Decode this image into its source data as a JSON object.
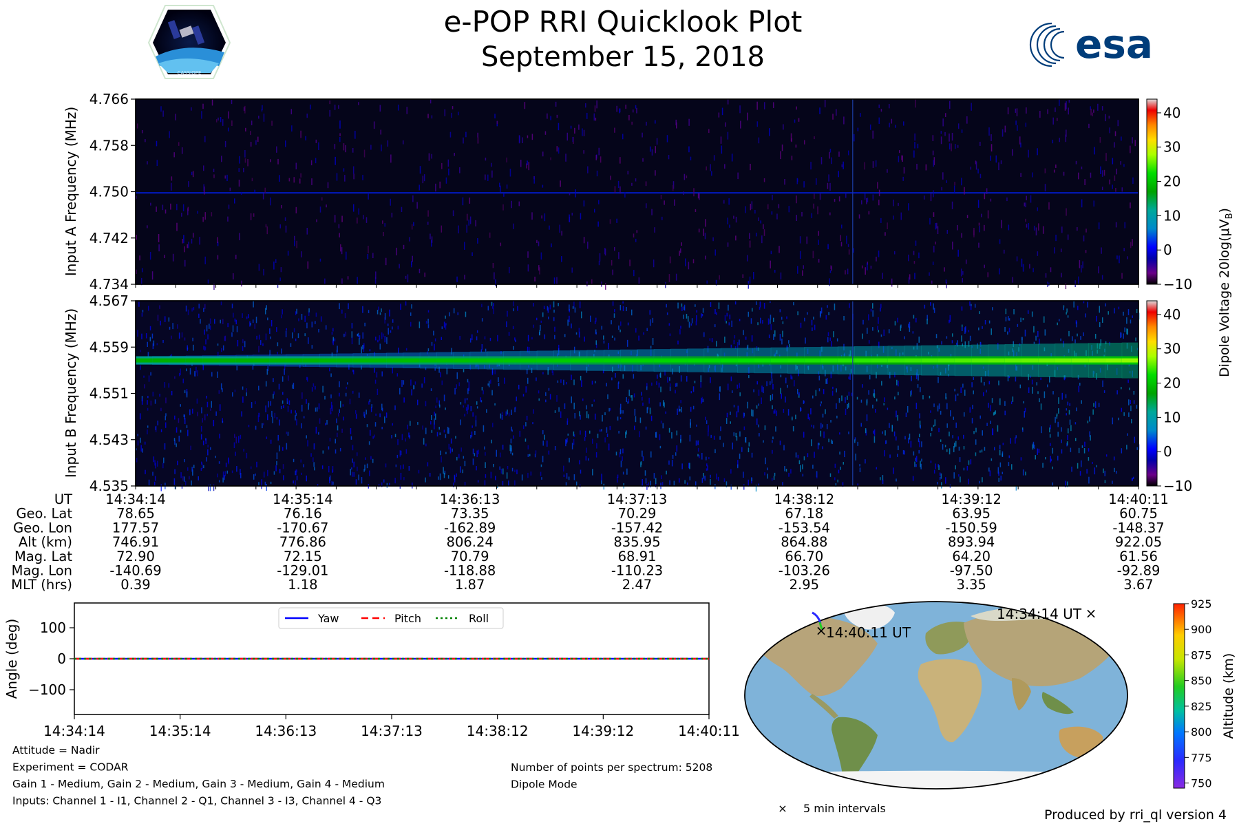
{
  "title": "e-POP RRI Quicklook Plot",
  "date": "September 15, 2018",
  "logos": {
    "left": "CASSIOPE",
    "right": "esa"
  },
  "colorbar": {
    "label": "Dipole Voltage 20log(μV",
    "label_sub": "B",
    "label_end": ")",
    "ticks": [
      "40",
      "30",
      "20",
      "10",
      "0",
      "−10"
    ],
    "range": [
      -10,
      44
    ]
  },
  "chart_data": [
    {
      "type": "heatmap",
      "name": "Input A spectrogram",
      "ylabel": "Input A Frequency (MHz)",
      "yticks": [
        "4.766",
        "4.758",
        "4.750",
        "4.742",
        "4.734"
      ],
      "ylim": [
        4.734,
        4.766
      ],
      "signal_freq_mhz": 4.7498,
      "signal_level_db": 2,
      "background_level_db": -8
    },
    {
      "type": "heatmap",
      "name": "Input B spectrogram",
      "ylabel": "Input B Frequency (MHz)",
      "yticks": [
        "4.567",
        "4.559",
        "4.551",
        "4.543",
        "4.535"
      ],
      "ylim": [
        4.535,
        4.567
      ],
      "signal_freq_mhz": 4.5567,
      "signal_level_db": [
        18,
        24,
        27
      ],
      "background_level_db": -4
    },
    {
      "type": "line",
      "name": "Attitude angles",
      "ylabel": "Angle (deg)",
      "yticks": [
        "100",
        "0",
        "−100"
      ],
      "ylim": [
        -180,
        180
      ],
      "xticks": [
        "14:34:14",
        "14:35:14",
        "14:36:13",
        "14:37:13",
        "14:38:12",
        "14:39:12",
        "14:40:11"
      ],
      "series": [
        {
          "name": "Yaw",
          "values": [
            0,
            0,
            0,
            0,
            0,
            0,
            0
          ],
          "color": "#0000ff"
        },
        {
          "name": "Pitch",
          "values": [
            0,
            0,
            0,
            0,
            0,
            0,
            0
          ],
          "color": "#ff0000"
        },
        {
          "name": "Roll",
          "values": [
            0,
            0,
            0,
            0,
            0,
            0,
            0
          ],
          "color": "#008000"
        }
      ]
    },
    {
      "type": "scatter",
      "name": "Ground track map",
      "colorbar_label": "Altitude (km)",
      "colorbar_ticks": [
        "925",
        "900",
        "875",
        "850",
        "825",
        "800",
        "775",
        "750"
      ],
      "start_label": "14:34:14 UT",
      "end_label": "14:40:11 UT",
      "marker_legend": "5 min intervals"
    }
  ],
  "ephemeris": {
    "row_labels": [
      "UT",
      "Geo. Lat",
      "Geo. Lon",
      "Alt (km)",
      "Mag. Lat",
      "Mag. Lon",
      "MLT (hrs)"
    ],
    "columns": [
      [
        "14:34:14",
        "78.65",
        "177.57",
        "746.91",
        "72.90",
        "-140.69",
        "0.39"
      ],
      [
        "14:35:14",
        "76.16",
        "-170.67",
        "776.86",
        "72.15",
        "-129.01",
        "1.18"
      ],
      [
        "14:36:13",
        "73.35",
        "-162.89",
        "806.24",
        "70.79",
        "-118.88",
        "1.87"
      ],
      [
        "14:37:13",
        "70.29",
        "-157.42",
        "835.95",
        "68.91",
        "-110.23",
        "2.47"
      ],
      [
        "14:38:12",
        "67.18",
        "-153.54",
        "864.88",
        "66.70",
        "-103.26",
        "2.95"
      ],
      [
        "14:39:12",
        "63.95",
        "-150.59",
        "893.94",
        "64.20",
        "-97.50",
        "3.35"
      ],
      [
        "14:40:11",
        "60.75",
        "-148.37",
        "922.05",
        "61.56",
        "-92.89",
        "3.67"
      ]
    ]
  },
  "info_left": [
    "Attitude = Nadir",
    "Experiment = CODAR",
    "Gain 1 - Medium, Gain 2 - Medium, Gain 3 - Medium, Gain 4 - Medium",
    "Inputs: Channel 1 - I1, Channel 2 - Q1, Channel 3 - I3, Channel 4 - Q3"
  ],
  "info_right": [
    "Number of points per spectrum: 5208",
    "Dipole Mode"
  ],
  "footer": "Produced by rri_ql version 4"
}
